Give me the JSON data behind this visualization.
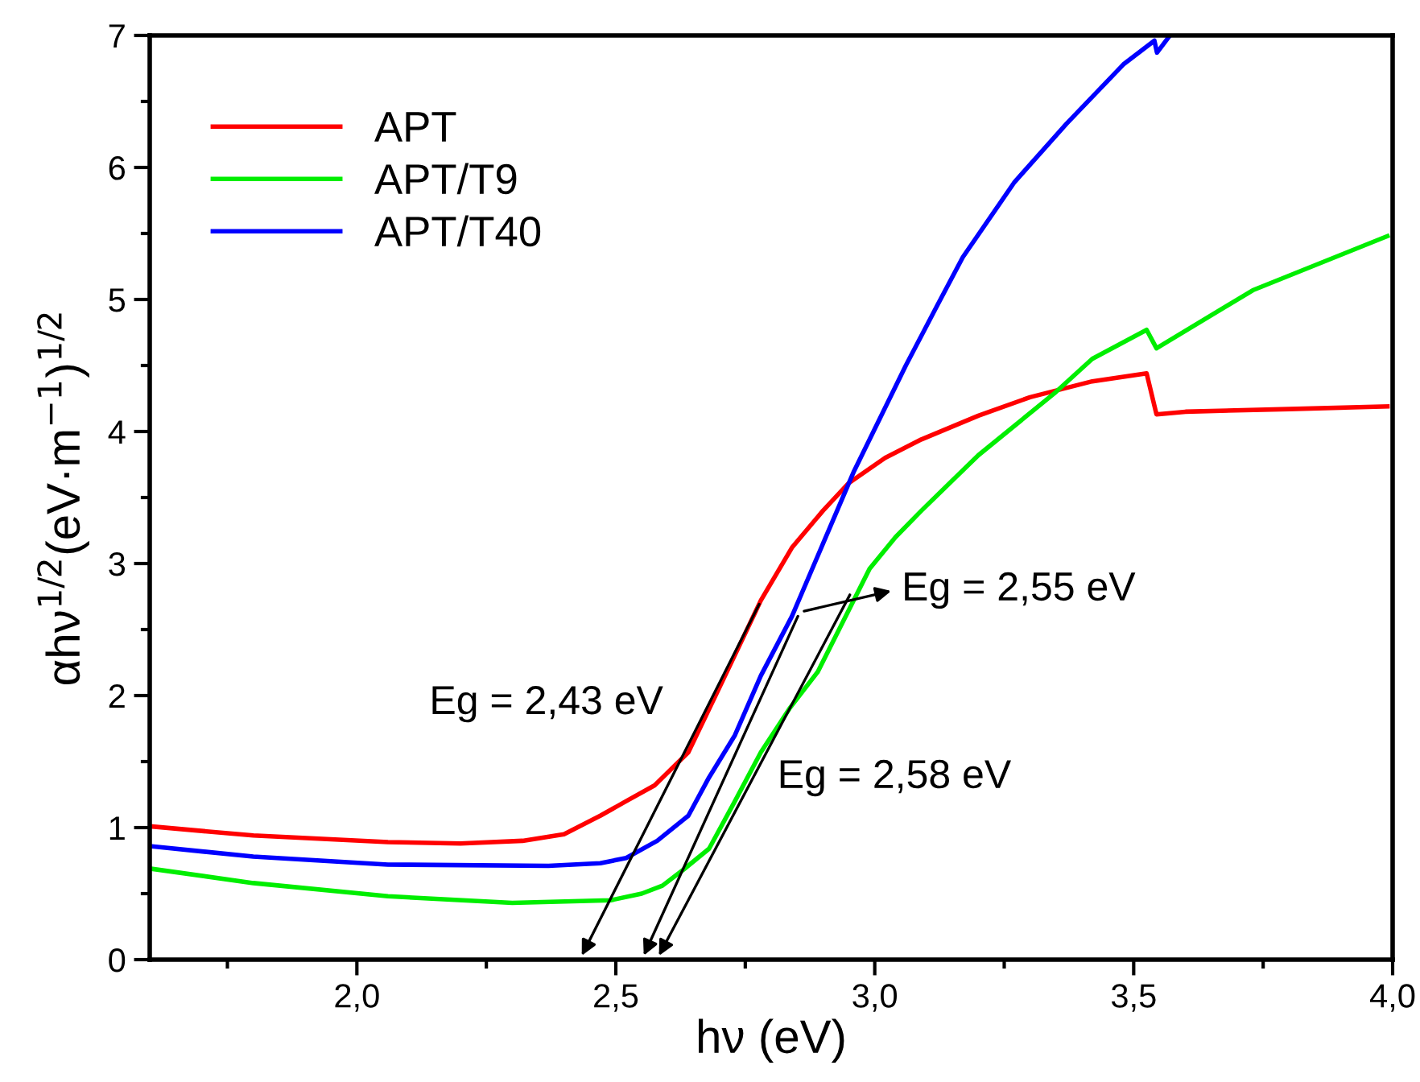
{
  "chart_data": {
    "type": "line",
    "xlabel": "hν (eV)",
    "ylabel": "αhν$^{1/2}$(eV·m$^{−1}$)$^{1/2}$",
    "xlim": [
      1.6,
      4.0
    ],
    "ylim": [
      0,
      7
    ],
    "xticks": [
      {
        "value": 1.75,
        "label": null
      },
      {
        "value": 2.0,
        "label": "2,0"
      },
      {
        "value": 2.25,
        "label": null
      },
      {
        "value": 2.5,
        "label": "2,5"
      },
      {
        "value": 2.75,
        "label": null
      },
      {
        "value": 3.0,
        "label": "3,0"
      },
      {
        "value": 3.25,
        "label": null
      },
      {
        "value": 3.5,
        "label": "3,5"
      },
      {
        "value": 3.75,
        "label": null
      },
      {
        "value": 4.0,
        "label": "4,0"
      }
    ],
    "yticks": [
      0,
      {
        "value": 0.5,
        "label": null
      },
      1,
      {
        "value": 1.5,
        "label": null
      },
      2,
      {
        "value": 2.5,
        "label": null
      },
      3,
      {
        "value": 3.5,
        "label": null
      },
      4,
      {
        "value": 4.5,
        "label": null
      },
      5,
      {
        "value": 5.5,
        "label": null
      },
      6,
      {
        "value": 6.5,
        "label": null
      },
      7
    ],
    "grid": false,
    "legend": "top left",
    "marker": "none",
    "line_style": "solid",
    "series": [
      {
        "name": "APT",
        "color": "#ff0000",
        "x": [
          1.6,
          1.8,
          2.06,
          2.2,
          2.32,
          2.4,
          2.47,
          2.52,
          2.575,
          2.64,
          2.7,
          2.78,
          2.84,
          2.9,
          2.95,
          3.02,
          3.09,
          3.2,
          3.3,
          3.42,
          3.525,
          3.544,
          3.6,
          3.8,
          3.99
        ],
        "values": [
          1.01,
          0.94,
          0.89,
          0.88,
          0.9,
          0.95,
          1.09,
          1.2,
          1.32,
          1.57,
          2.06,
          2.72,
          3.12,
          3.4,
          3.61,
          3.8,
          3.94,
          4.12,
          4.26,
          4.38,
          4.44,
          4.13,
          4.15,
          4.17,
          4.19
        ]
      },
      {
        "name": "APT/T9",
        "color": "#00ee00",
        "x": [
          1.6,
          1.8,
          2.06,
          2.3,
          2.49,
          2.55,
          2.59,
          2.63,
          2.68,
          2.73,
          2.78,
          2.835,
          2.89,
          2.94,
          2.99,
          3.04,
          3.09,
          3.15,
          3.2,
          3.35,
          3.42,
          3.525,
          3.544,
          3.73,
          3.99
        ],
        "values": [
          0.69,
          0.58,
          0.48,
          0.43,
          0.45,
          0.5,
          0.56,
          0.68,
          0.84,
          1.2,
          1.57,
          1.9,
          2.18,
          2.57,
          2.96,
          3.2,
          3.4,
          3.63,
          3.82,
          4.3,
          4.55,
          4.77,
          4.63,
          5.07,
          5.48
        ]
      },
      {
        "name": "APT/T40",
        "color": "#0000ff",
        "x": [
          1.6,
          1.8,
          2.06,
          2.37,
          2.47,
          2.52,
          2.58,
          2.64,
          2.68,
          2.73,
          2.78,
          2.84,
          2.9,
          2.96,
          3.04,
          3.06,
          3.12,
          3.17,
          3.27,
          3.37,
          3.48,
          3.54,
          3.545,
          3.57
        ],
        "values": [
          0.86,
          0.78,
          0.72,
          0.71,
          0.73,
          0.77,
          0.9,
          1.09,
          1.38,
          1.7,
          2.15,
          2.6,
          3.15,
          3.7,
          4.34,
          4.5,
          4.95,
          5.32,
          5.89,
          6.33,
          6.78,
          6.96,
          6.87,
          7.0
        ]
      }
    ],
    "annotations": [
      "Eg = 2,43 eV",
      "Eg = 2,55 eV",
      "Eg = 2,58 eV"
    ]
  }
}
